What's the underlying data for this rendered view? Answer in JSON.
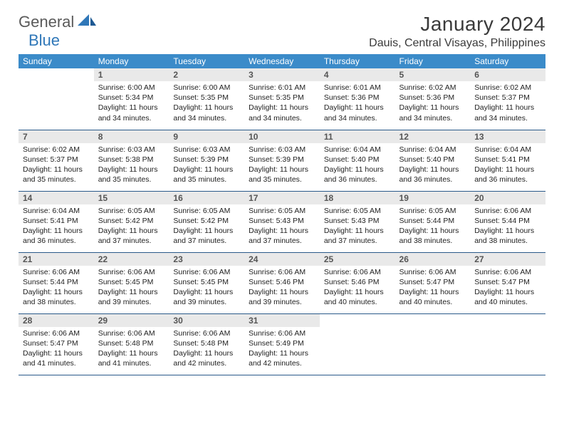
{
  "brand": {
    "part1": "General",
    "part2": "Blue"
  },
  "title": "January 2024",
  "location": "Dauis, Central Visayas, Philippines",
  "colors": {
    "header_bg": "#3b8bc9",
    "header_text": "#ffffff",
    "daynum_bg": "#e9e9e9",
    "border": "#2a5a8a",
    "brand_gray": "#5a5a5a",
    "brand_blue": "#2f77b8"
  },
  "weekdays": [
    "Sunday",
    "Monday",
    "Tuesday",
    "Wednesday",
    "Thursday",
    "Friday",
    "Saturday"
  ],
  "weeks": [
    [
      {
        "n": "",
        "sr": "",
        "ss": "",
        "dl": ""
      },
      {
        "n": "1",
        "sr": "6:00 AM",
        "ss": "5:34 PM",
        "dl": "11 hours and 34 minutes."
      },
      {
        "n": "2",
        "sr": "6:00 AM",
        "ss": "5:35 PM",
        "dl": "11 hours and 34 minutes."
      },
      {
        "n": "3",
        "sr": "6:01 AM",
        "ss": "5:35 PM",
        "dl": "11 hours and 34 minutes."
      },
      {
        "n": "4",
        "sr": "6:01 AM",
        "ss": "5:36 PM",
        "dl": "11 hours and 34 minutes."
      },
      {
        "n": "5",
        "sr": "6:02 AM",
        "ss": "5:36 PM",
        "dl": "11 hours and 34 minutes."
      },
      {
        "n": "6",
        "sr": "6:02 AM",
        "ss": "5:37 PM",
        "dl": "11 hours and 34 minutes."
      }
    ],
    [
      {
        "n": "7",
        "sr": "6:02 AM",
        "ss": "5:37 PM",
        "dl": "11 hours and 35 minutes."
      },
      {
        "n": "8",
        "sr": "6:03 AM",
        "ss": "5:38 PM",
        "dl": "11 hours and 35 minutes."
      },
      {
        "n": "9",
        "sr": "6:03 AM",
        "ss": "5:39 PM",
        "dl": "11 hours and 35 minutes."
      },
      {
        "n": "10",
        "sr": "6:03 AM",
        "ss": "5:39 PM",
        "dl": "11 hours and 35 minutes."
      },
      {
        "n": "11",
        "sr": "6:04 AM",
        "ss": "5:40 PM",
        "dl": "11 hours and 36 minutes."
      },
      {
        "n": "12",
        "sr": "6:04 AM",
        "ss": "5:40 PM",
        "dl": "11 hours and 36 minutes."
      },
      {
        "n": "13",
        "sr": "6:04 AM",
        "ss": "5:41 PM",
        "dl": "11 hours and 36 minutes."
      }
    ],
    [
      {
        "n": "14",
        "sr": "6:04 AM",
        "ss": "5:41 PM",
        "dl": "11 hours and 36 minutes."
      },
      {
        "n": "15",
        "sr": "6:05 AM",
        "ss": "5:42 PM",
        "dl": "11 hours and 37 minutes."
      },
      {
        "n": "16",
        "sr": "6:05 AM",
        "ss": "5:42 PM",
        "dl": "11 hours and 37 minutes."
      },
      {
        "n": "17",
        "sr": "6:05 AM",
        "ss": "5:43 PM",
        "dl": "11 hours and 37 minutes."
      },
      {
        "n": "18",
        "sr": "6:05 AM",
        "ss": "5:43 PM",
        "dl": "11 hours and 37 minutes."
      },
      {
        "n": "19",
        "sr": "6:05 AM",
        "ss": "5:44 PM",
        "dl": "11 hours and 38 minutes."
      },
      {
        "n": "20",
        "sr": "6:06 AM",
        "ss": "5:44 PM",
        "dl": "11 hours and 38 minutes."
      }
    ],
    [
      {
        "n": "21",
        "sr": "6:06 AM",
        "ss": "5:44 PM",
        "dl": "11 hours and 38 minutes."
      },
      {
        "n": "22",
        "sr": "6:06 AM",
        "ss": "5:45 PM",
        "dl": "11 hours and 39 minutes."
      },
      {
        "n": "23",
        "sr": "6:06 AM",
        "ss": "5:45 PM",
        "dl": "11 hours and 39 minutes."
      },
      {
        "n": "24",
        "sr": "6:06 AM",
        "ss": "5:46 PM",
        "dl": "11 hours and 39 minutes."
      },
      {
        "n": "25",
        "sr": "6:06 AM",
        "ss": "5:46 PM",
        "dl": "11 hours and 40 minutes."
      },
      {
        "n": "26",
        "sr": "6:06 AM",
        "ss": "5:47 PM",
        "dl": "11 hours and 40 minutes."
      },
      {
        "n": "27",
        "sr": "6:06 AM",
        "ss": "5:47 PM",
        "dl": "11 hours and 40 minutes."
      }
    ],
    [
      {
        "n": "28",
        "sr": "6:06 AM",
        "ss": "5:47 PM",
        "dl": "11 hours and 41 minutes."
      },
      {
        "n": "29",
        "sr": "6:06 AM",
        "ss": "5:48 PM",
        "dl": "11 hours and 41 minutes."
      },
      {
        "n": "30",
        "sr": "6:06 AM",
        "ss": "5:48 PM",
        "dl": "11 hours and 42 minutes."
      },
      {
        "n": "31",
        "sr": "6:06 AM",
        "ss": "5:49 PM",
        "dl": "11 hours and 42 minutes."
      },
      {
        "n": "",
        "sr": "",
        "ss": "",
        "dl": ""
      },
      {
        "n": "",
        "sr": "",
        "ss": "",
        "dl": ""
      },
      {
        "n": "",
        "sr": "",
        "ss": "",
        "dl": ""
      }
    ]
  ],
  "labels": {
    "sunrise": "Sunrise:",
    "sunset": "Sunset:",
    "daylight": "Daylight:"
  }
}
